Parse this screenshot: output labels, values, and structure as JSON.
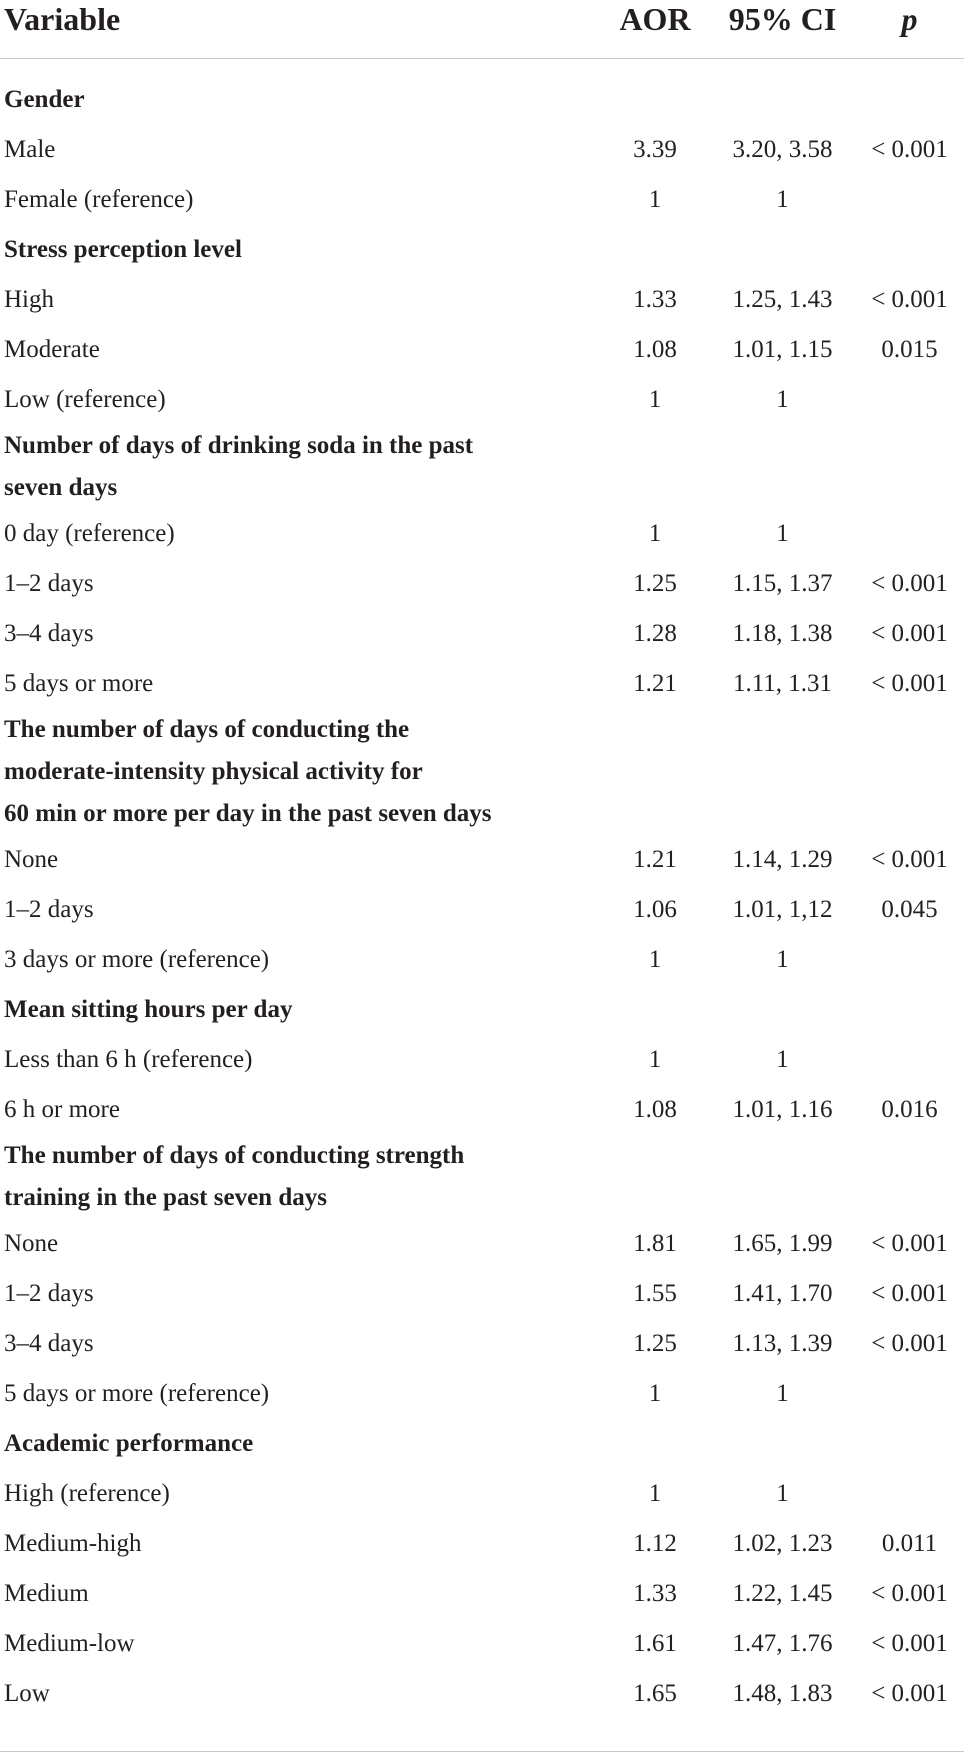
{
  "table": {
    "headers": {
      "variable": "Variable",
      "aor": "AOR",
      "ci": "95% CI",
      "p": "p"
    },
    "rows": [
      {
        "type": "heading",
        "label": "Gender"
      },
      {
        "type": "data",
        "label": "Male",
        "aor": "3.39",
        "ci": "3.20, 3.58",
        "p": "< 0.001"
      },
      {
        "type": "data",
        "label": "Female (reference)",
        "aor": "1",
        "ci": "1",
        "p": ""
      },
      {
        "type": "heading",
        "label": "Stress perception level"
      },
      {
        "type": "data",
        "label": "High",
        "aor": "1.33",
        "ci": "1.25, 1.43",
        "p": "< 0.001"
      },
      {
        "type": "data",
        "label": "Moderate",
        "aor": "1.08",
        "ci": "1.01, 1.15",
        "p": "0.015"
      },
      {
        "type": "data",
        "label": "Low (reference)",
        "aor": "1",
        "ci": "1",
        "p": ""
      },
      {
        "type": "heading",
        "lines": 2,
        "label": "Number of days of drinking soda in the past seven days",
        "label_lines": [
          "Number of days of drinking soda in the past",
          "seven days"
        ]
      },
      {
        "type": "data",
        "label": "0 day (reference)",
        "aor": "1",
        "ci": "1",
        "p": ""
      },
      {
        "type": "data",
        "label": "1–2 days",
        "aor": "1.25",
        "ci": "1.15, 1.37",
        "p": "< 0.001"
      },
      {
        "type": "data",
        "label": "3–4 days",
        "aor": "1.28",
        "ci": "1.18, 1.38",
        "p": "< 0.001"
      },
      {
        "type": "data",
        "label": "5 days or more",
        "aor": "1.21",
        "ci": "1.11, 1.31",
        "p": "< 0.001"
      },
      {
        "type": "heading",
        "lines": 3,
        "label": "The number of days of conducting the moderate-intensity physical activity for 60 min or more per day in the past seven days",
        "label_lines": [
          "The number of days of conducting the",
          "moderate-intensity physical activity for",
          "60 min or more per day in the past seven days"
        ]
      },
      {
        "type": "data",
        "label": "None",
        "aor": "1.21",
        "ci": "1.14, 1.29",
        "p": "< 0.001"
      },
      {
        "type": "data",
        "label": "1–2 days",
        "aor": "1.06",
        "ci": "1.01, 1,12",
        "p": "0.045"
      },
      {
        "type": "data",
        "label": "3 days or more (reference)",
        "aor": "1",
        "ci": "1",
        "p": ""
      },
      {
        "type": "heading",
        "label": "Mean sitting hours per day"
      },
      {
        "type": "data",
        "label": "Less than 6 h (reference)",
        "aor": "1",
        "ci": "1",
        "p": ""
      },
      {
        "type": "data",
        "label": "6 h or more",
        "aor": "1.08",
        "ci": "1.01, 1.16",
        "p": "0.016"
      },
      {
        "type": "heading",
        "lines": 2,
        "label": "The number of days of conducting strength training in the past seven days",
        "label_lines": [
          "The number of days of conducting strength",
          "training in the past seven days"
        ]
      },
      {
        "type": "data",
        "label": "None",
        "aor": "1.81",
        "ci": "1.65, 1.99",
        "p": "< 0.001"
      },
      {
        "type": "data",
        "label": "1–2 days",
        "aor": "1.55",
        "ci": "1.41, 1.70",
        "p": "< 0.001"
      },
      {
        "type": "data",
        "label": "3–4 days",
        "aor": "1.25",
        "ci": "1.13, 1.39",
        "p": "< 0.001"
      },
      {
        "type": "data",
        "label": "5 days or more (reference)",
        "aor": "1",
        "ci": "1",
        "p": ""
      },
      {
        "type": "heading",
        "label": "Academic performance"
      },
      {
        "type": "data",
        "label": "High (reference)",
        "aor": "1",
        "ci": "1",
        "p": ""
      },
      {
        "type": "data",
        "label": "Medium-high",
        "aor": "1.12",
        "ci": "1.02, 1.23",
        "p": "0.011"
      },
      {
        "type": "data",
        "label": "Medium",
        "aor": "1.33",
        "ci": "1.22, 1.45",
        "p": "< 0.001"
      },
      {
        "type": "data",
        "label": "Medium-low",
        "aor": "1.61",
        "ci": "1.47, 1.76",
        "p": "< 0.001"
      },
      {
        "type": "data",
        "label": "Low",
        "aor": "1.65",
        "ci": "1.48, 1.83",
        "p": "< 0.001"
      }
    ]
  }
}
